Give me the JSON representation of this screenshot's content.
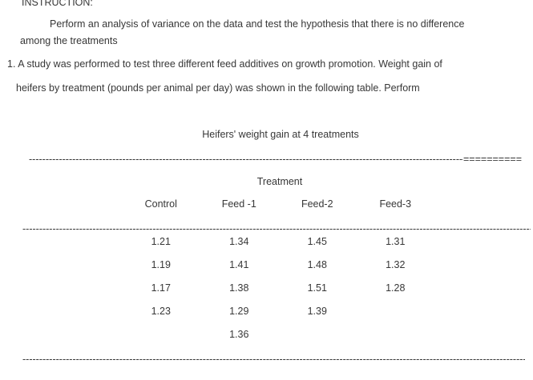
{
  "document": {
    "heading": "INSTRUCTION:",
    "intro": {
      "line1": "Perform an analysis of variance on the data and test the hypothesis that there is no difference",
      "line2": "among the treatments"
    },
    "problem": {
      "line1": "1. A study was performed to test three different feed additives on growth promotion. Weight gain of",
      "line2": "heifers by treatment (pounds per animal per day) was shown in the following table. Perform"
    }
  },
  "table": {
    "title": "Heifers' weight gain at 4 treatments",
    "group_header": "Treatment",
    "columns": [
      "Control",
      "Feed -1",
      "Feed-2",
      "Feed-3"
    ],
    "rows": [
      [
        "1.21",
        "1.34",
        "1.45",
        "1.31"
      ],
      [
        "1.19",
        "1.41",
        "1.48",
        "1.32"
      ],
      [
        "1.17",
        "1.38",
        "1.51",
        "1.28"
      ],
      [
        "1.23",
        "1.29",
        "1.39",
        ""
      ],
      [
        "",
        "1.36",
        "",
        ""
      ]
    ],
    "rules": {
      "dashes": "------------------------------------------------------------------------------------------------------------------------------------------------------------------------------------",
      "equals": "=========="
    }
  },
  "colors": {
    "text": "#373737",
    "background": "#ffffff"
  }
}
